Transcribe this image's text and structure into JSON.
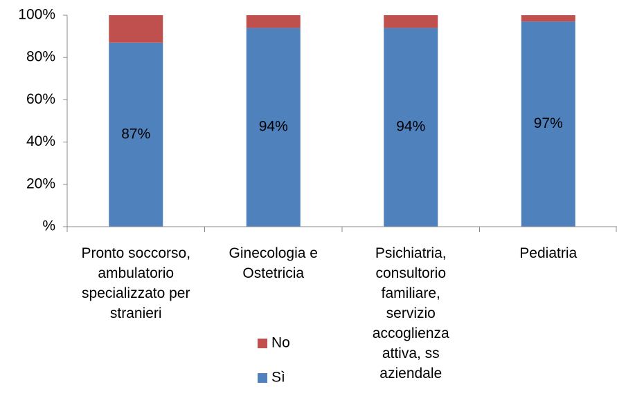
{
  "chart_data": {
    "type": "stacked_bar",
    "categories": [
      "Pronto soccorso,\nambulatorio\nspecializzato per\nstranieri",
      "Ginecologia e\nOstetricia",
      "Psichiatria,\nconsultorio\nfamiliare,\nservizio\naccoglienza\nattiva, ss\naziendale",
      "Pediatria"
    ],
    "series": [
      {
        "name": "Sì",
        "color": "#4f81bd",
        "values": [
          87,
          94,
          94,
          97
        ],
        "value_labels": [
          "87%",
          "94%",
          "94%",
          "97%"
        ]
      },
      {
        "name": "No",
        "color": "#c0504d",
        "values": [
          13,
          6,
          6,
          3
        ]
      }
    ],
    "ylim": [
      0,
      100
    ],
    "yticks": [
      {
        "value": 0,
        "label": "%"
      },
      {
        "value": 20,
        "label": "20%"
      },
      {
        "value": 40,
        "label": "40%"
      },
      {
        "value": 60,
        "label": "60%"
      },
      {
        "value": 80,
        "label": "80%"
      },
      {
        "value": 100,
        "label": "100%"
      }
    ]
  }
}
